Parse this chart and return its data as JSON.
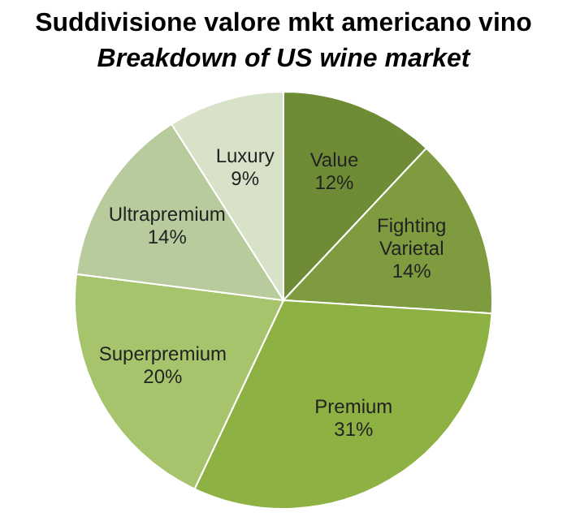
{
  "chart_data": {
    "type": "pie",
    "title": "Suddivisione valore mkt americano vino",
    "subtitle": "Breakdown of US wine market",
    "categories": [
      "Value",
      "Fighting Varietal",
      "Premium",
      "Superpremium",
      "Ultrapremium",
      "Luxury"
    ],
    "values": [
      12,
      14,
      31,
      20,
      14,
      9
    ],
    "value_labels": [
      "12%",
      "14%",
      "31%",
      "20%",
      "14%",
      "9%"
    ],
    "colors": [
      "#6e8b35",
      "#7e9c3f",
      "#8eb143",
      "#a6c46c",
      "#b7cb9c",
      "#d8e2c8"
    ],
    "legend": false
  }
}
